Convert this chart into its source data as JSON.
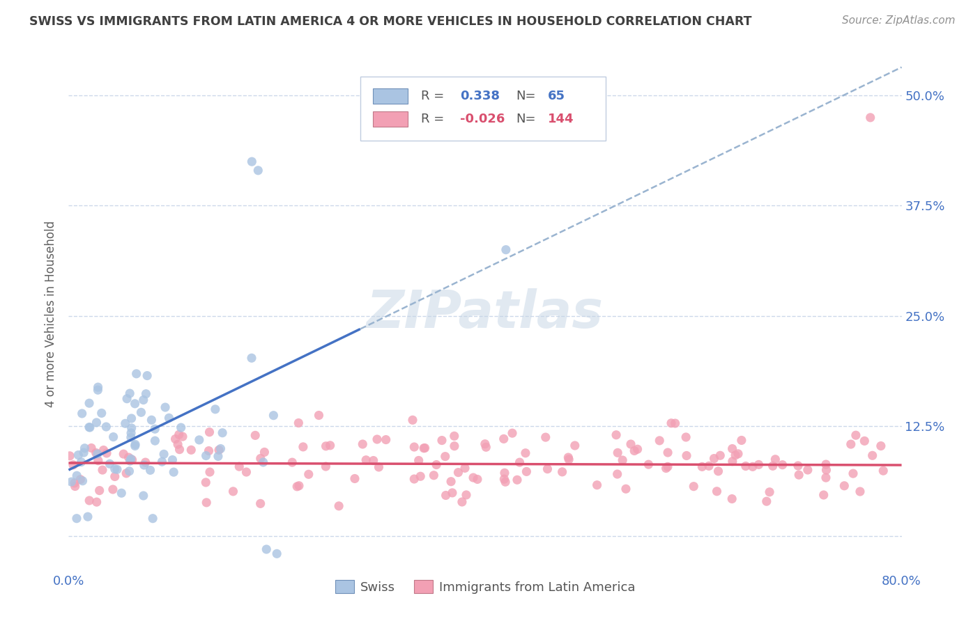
{
  "title": "SWISS VS IMMIGRANTS FROM LATIN AMERICA 4 OR MORE VEHICLES IN HOUSEHOLD CORRELATION CHART",
  "source": "Source: ZipAtlas.com",
  "ylabel": "4 or more Vehicles in Household",
  "xlim": [
    0.0,
    0.8
  ],
  "ylim": [
    -0.04,
    0.545
  ],
  "ytick_vals": [
    0.125,
    0.25,
    0.375,
    0.5
  ],
  "ytick_labels": [
    "12.5%",
    "25.0%",
    "37.5%",
    "50.0%"
  ],
  "swiss_color": "#aac4e2",
  "latin_color": "#f2a0b4",
  "swiss_line_color": "#4472c4",
  "latin_line_color": "#d94f6e",
  "dashed_line_color": "#9ab4d0",
  "r_swiss": 0.338,
  "n_swiss": 65,
  "r_latin": -0.026,
  "n_latin": 144,
  "watermark": "ZIPatlas",
  "background_color": "#ffffff",
  "grid_color": "#ccd8ea",
  "title_color": "#404040",
  "axis_label_color": "#4472c4",
  "ylabel_color": "#606060",
  "source_color": "#909090"
}
